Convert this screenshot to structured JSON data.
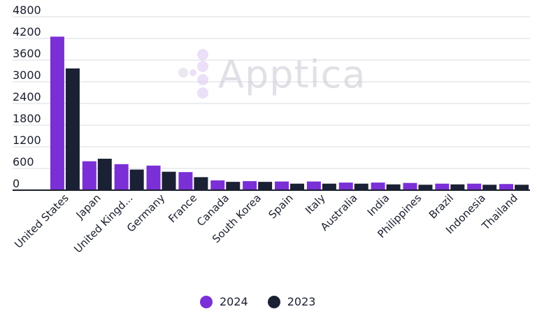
{
  "chart_data": {
    "type": "bar",
    "categories": [
      "United States",
      "Japan",
      "United Kingd...",
      "Germany",
      "France",
      "Canada",
      "South Korea",
      "Spain",
      "Italy",
      "Australia",
      "India",
      "Philippines",
      "Brazil",
      "Indonesia",
      "Thailand"
    ],
    "series": [
      {
        "name": "2024",
        "color": "#7b2fd6",
        "values": [
          4250,
          800,
          720,
          680,
          500,
          270,
          250,
          240,
          240,
          210,
          210,
          200,
          180,
          180,
          170
        ]
      },
      {
        "name": "2023",
        "color": "#1b2134",
        "values": [
          3370,
          870,
          570,
          510,
          360,
          230,
          230,
          180,
          180,
          180,
          160,
          150,
          160,
          150,
          150
        ]
      }
    ],
    "y_ticks": [
      "0",
      "600",
      "1200",
      "1800",
      "2400",
      "3000",
      "3600",
      "4200",
      "4800"
    ],
    "ylim": [
      0,
      4800
    ],
    "grid": true,
    "legend_position": "bottom-center"
  },
  "watermark": {
    "text": "Apptica"
  }
}
